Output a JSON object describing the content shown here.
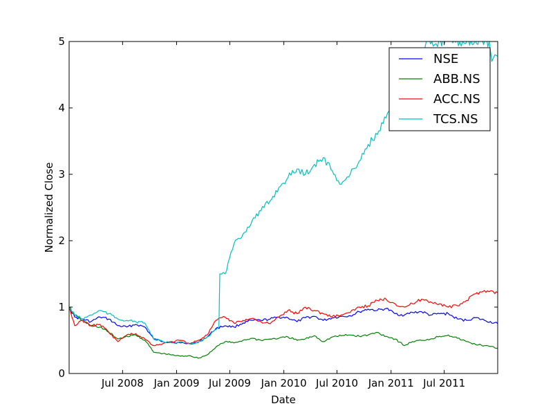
{
  "chart_data": {
    "type": "line",
    "title": "",
    "xlabel": "Date",
    "ylabel": "Normalized Close",
    "x_range": [
      "2008-01-01",
      "2011-12-30"
    ],
    "ylim": [
      0,
      5
    ],
    "yticks": [
      0,
      1,
      2,
      3,
      4,
      5
    ],
    "xticks": [
      {
        "date": "2008-07-01",
        "label": "Jul 2008"
      },
      {
        "date": "2009-01-01",
        "label": "Jan 2009"
      },
      {
        "date": "2009-07-01",
        "label": "Jul 2009"
      },
      {
        "date": "2010-01-01",
        "label": "Jan 2010"
      },
      {
        "date": "2010-07-01",
        "label": "Jul 2010"
      },
      {
        "date": "2011-01-01",
        "label": "Jan 2011"
      },
      {
        "date": "2011-07-01",
        "label": "Jul 2011"
      }
    ],
    "grid": false,
    "legend_position": "top-right",
    "series": [
      {
        "name": "NSE",
        "color": "#0000ff",
        "points": [
          [
            "2008-01-01",
            1.0
          ],
          [
            "2008-01-20",
            0.85
          ],
          [
            "2008-02-15",
            0.82
          ],
          [
            "2008-03-15",
            0.78
          ],
          [
            "2008-04-15",
            0.85
          ],
          [
            "2008-05-15",
            0.82
          ],
          [
            "2008-06-15",
            0.72
          ],
          [
            "2008-07-15",
            0.7
          ],
          [
            "2008-08-15",
            0.74
          ],
          [
            "2008-09-15",
            0.7
          ],
          [
            "2008-10-15",
            0.52
          ],
          [
            "2008-11-15",
            0.48
          ],
          [
            "2008-12-15",
            0.47
          ],
          [
            "2009-01-15",
            0.46
          ],
          [
            "2009-02-15",
            0.45
          ],
          [
            "2009-03-15",
            0.47
          ],
          [
            "2009-04-15",
            0.55
          ],
          [
            "2009-05-15",
            0.68
          ],
          [
            "2009-06-15",
            0.72
          ],
          [
            "2009-07-15",
            0.7
          ],
          [
            "2009-08-15",
            0.76
          ],
          [
            "2009-09-15",
            0.8
          ],
          [
            "2009-10-15",
            0.8
          ],
          [
            "2009-11-15",
            0.82
          ],
          [
            "2009-12-15",
            0.85
          ],
          [
            "2010-01-15",
            0.84
          ],
          [
            "2010-02-15",
            0.78
          ],
          [
            "2010-03-15",
            0.84
          ],
          [
            "2010-04-15",
            0.86
          ],
          [
            "2010-05-15",
            0.8
          ],
          [
            "2010-06-15",
            0.84
          ],
          [
            "2010-07-15",
            0.86
          ],
          [
            "2010-08-15",
            0.87
          ],
          [
            "2010-09-15",
            0.93
          ],
          [
            "2010-10-15",
            0.97
          ],
          [
            "2010-11-15",
            0.95
          ],
          [
            "2010-12-15",
            0.98
          ],
          [
            "2011-01-15",
            0.9
          ],
          [
            "2011-02-15",
            0.88
          ],
          [
            "2011-03-15",
            0.92
          ],
          [
            "2011-04-15",
            0.93
          ],
          [
            "2011-05-15",
            0.88
          ],
          [
            "2011-06-15",
            0.9
          ],
          [
            "2011-07-15",
            0.9
          ],
          [
            "2011-08-15",
            0.82
          ],
          [
            "2011-09-15",
            0.8
          ],
          [
            "2011-10-15",
            0.84
          ],
          [
            "2011-11-15",
            0.8
          ],
          [
            "2011-12-30",
            0.75
          ]
        ]
      },
      {
        "name": "ABB.NS",
        "color": "#008000",
        "points": [
          [
            "2008-01-01",
            1.0
          ],
          [
            "2008-01-20",
            0.88
          ],
          [
            "2008-02-15",
            0.8
          ],
          [
            "2008-03-15",
            0.72
          ],
          [
            "2008-04-15",
            0.7
          ],
          [
            "2008-05-15",
            0.62
          ],
          [
            "2008-06-15",
            0.52
          ],
          [
            "2008-07-15",
            0.56
          ],
          [
            "2008-08-15",
            0.58
          ],
          [
            "2008-09-15",
            0.5
          ],
          [
            "2008-10-15",
            0.32
          ],
          [
            "2008-11-15",
            0.3
          ],
          [
            "2008-12-15",
            0.28
          ],
          [
            "2009-01-15",
            0.26
          ],
          [
            "2009-02-15",
            0.27
          ],
          [
            "2009-03-15",
            0.23
          ],
          [
            "2009-04-15",
            0.28
          ],
          [
            "2009-05-15",
            0.4
          ],
          [
            "2009-06-15",
            0.48
          ],
          [
            "2009-07-15",
            0.46
          ],
          [
            "2009-08-15",
            0.5
          ],
          [
            "2009-09-15",
            0.53
          ],
          [
            "2009-10-15",
            0.5
          ],
          [
            "2009-11-15",
            0.52
          ],
          [
            "2009-12-15",
            0.53
          ],
          [
            "2010-01-15",
            0.55
          ],
          [
            "2010-02-15",
            0.5
          ],
          [
            "2010-03-15",
            0.52
          ],
          [
            "2010-04-15",
            0.57
          ],
          [
            "2010-05-15",
            0.48
          ],
          [
            "2010-06-15",
            0.55
          ],
          [
            "2010-07-15",
            0.57
          ],
          [
            "2010-08-15",
            0.58
          ],
          [
            "2010-09-15",
            0.56
          ],
          [
            "2010-10-15",
            0.58
          ],
          [
            "2010-11-15",
            0.62
          ],
          [
            "2010-12-15",
            0.56
          ],
          [
            "2011-01-15",
            0.52
          ],
          [
            "2011-02-15",
            0.42
          ],
          [
            "2011-03-15",
            0.48
          ],
          [
            "2011-04-15",
            0.5
          ],
          [
            "2011-05-15",
            0.52
          ],
          [
            "2011-06-15",
            0.56
          ],
          [
            "2011-07-15",
            0.58
          ],
          [
            "2011-08-15",
            0.53
          ],
          [
            "2011-09-15",
            0.48
          ],
          [
            "2011-10-15",
            0.44
          ],
          [
            "2011-11-15",
            0.42
          ],
          [
            "2011-12-30",
            0.38
          ]
        ]
      },
      {
        "name": "ACC.NS",
        "color": "#ff0000",
        "points": [
          [
            "2008-01-01",
            1.0
          ],
          [
            "2008-01-20",
            0.72
          ],
          [
            "2008-02-15",
            0.8
          ],
          [
            "2008-03-15",
            0.72
          ],
          [
            "2008-04-15",
            0.74
          ],
          [
            "2008-05-15",
            0.62
          ],
          [
            "2008-06-15",
            0.48
          ],
          [
            "2008-07-15",
            0.58
          ],
          [
            "2008-08-15",
            0.6
          ],
          [
            "2008-09-15",
            0.52
          ],
          [
            "2008-10-15",
            0.42
          ],
          [
            "2008-11-15",
            0.45
          ],
          [
            "2008-12-15",
            0.48
          ],
          [
            "2009-01-15",
            0.5
          ],
          [
            "2009-02-15",
            0.45
          ],
          [
            "2009-03-15",
            0.5
          ],
          [
            "2009-04-15",
            0.58
          ],
          [
            "2009-05-15",
            0.8
          ],
          [
            "2009-06-15",
            0.85
          ],
          [
            "2009-07-15",
            0.76
          ],
          [
            "2009-08-15",
            0.8
          ],
          [
            "2009-09-15",
            0.83
          ],
          [
            "2009-10-15",
            0.78
          ],
          [
            "2009-11-15",
            0.75
          ],
          [
            "2009-12-15",
            0.85
          ],
          [
            "2010-01-15",
            0.95
          ],
          [
            "2010-02-15",
            0.9
          ],
          [
            "2010-03-15",
            1.0
          ],
          [
            "2010-04-15",
            0.95
          ],
          [
            "2010-05-15",
            0.9
          ],
          [
            "2010-06-15",
            0.86
          ],
          [
            "2010-07-15",
            0.88
          ],
          [
            "2010-08-15",
            0.92
          ],
          [
            "2010-09-15",
            1.0
          ],
          [
            "2010-10-15",
            1.02
          ],
          [
            "2010-11-15",
            1.1
          ],
          [
            "2010-12-15",
            1.12
          ],
          [
            "2011-01-15",
            1.05
          ],
          [
            "2011-02-15",
            1.0
          ],
          [
            "2011-03-15",
            1.05
          ],
          [
            "2011-04-15",
            1.12
          ],
          [
            "2011-05-15",
            1.08
          ],
          [
            "2011-06-15",
            1.05
          ],
          [
            "2011-07-15",
            1.0
          ],
          [
            "2011-08-15",
            1.02
          ],
          [
            "2011-09-15",
            1.1
          ],
          [
            "2011-10-15",
            1.2
          ],
          [
            "2011-11-15",
            1.25
          ],
          [
            "2011-12-30",
            1.22
          ]
        ]
      },
      {
        "name": "TCS.NS",
        "color": "#00bfbf",
        "points": [
          [
            "2008-01-01",
            1.0
          ],
          [
            "2008-01-20",
            0.88
          ],
          [
            "2008-02-15",
            0.82
          ],
          [
            "2008-03-15",
            0.88
          ],
          [
            "2008-04-15",
            0.95
          ],
          [
            "2008-05-15",
            0.9
          ],
          [
            "2008-06-15",
            0.82
          ],
          [
            "2008-07-15",
            0.8
          ],
          [
            "2008-08-15",
            0.78
          ],
          [
            "2008-09-15",
            0.76
          ],
          [
            "2008-10-15",
            0.52
          ],
          [
            "2008-11-15",
            0.48
          ],
          [
            "2008-12-15",
            0.46
          ],
          [
            "2009-01-15",
            0.48
          ],
          [
            "2009-02-15",
            0.44
          ],
          [
            "2009-03-15",
            0.46
          ],
          [
            "2009-04-15",
            0.55
          ],
          [
            "2009-05-15",
            0.66
          ],
          [
            "2009-05-25",
            0.7
          ],
          [
            "2009-05-28",
            1.5
          ],
          [
            "2009-06-15",
            1.5
          ],
          [
            "2009-07-15",
            1.95
          ],
          [
            "2009-08-15",
            2.1
          ],
          [
            "2009-09-15",
            2.3
          ],
          [
            "2009-10-15",
            2.45
          ],
          [
            "2009-11-15",
            2.6
          ],
          [
            "2009-12-15",
            2.8
          ],
          [
            "2010-01-15",
            2.95
          ],
          [
            "2010-02-15",
            3.08
          ],
          [
            "2010-03-15",
            3.0
          ],
          [
            "2010-04-15",
            3.15
          ],
          [
            "2010-05-15",
            3.25
          ],
          [
            "2010-06-15",
            3.05
          ],
          [
            "2010-07-15",
            2.85
          ],
          [
            "2010-08-15",
            3.0
          ],
          [
            "2010-09-15",
            3.2
          ],
          [
            "2010-10-15",
            3.45
          ],
          [
            "2010-11-15",
            3.6
          ],
          [
            "2010-12-15",
            3.85
          ],
          [
            "2011-01-15",
            4.1
          ],
          [
            "2011-02-15",
            4.35
          ],
          [
            "2011-03-15",
            4.6
          ],
          [
            "2011-04-15",
            4.85
          ],
          [
            "2011-05-01",
            5.0
          ],
          [
            "2011-12-01",
            5.0
          ],
          [
            "2011-12-10",
            4.7
          ],
          [
            "2011-12-20",
            4.8
          ],
          [
            "2011-12-30",
            4.78
          ]
        ]
      }
    ]
  }
}
